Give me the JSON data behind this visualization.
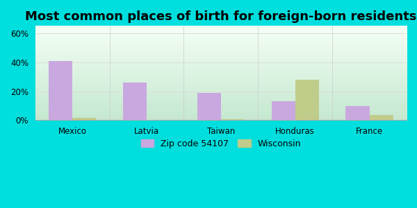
{
  "title": "Most common places of birth for foreign-born residents",
  "categories": [
    "Mexico",
    "Latvia",
    "Taiwan",
    "Honduras",
    "France"
  ],
  "zip_values": [
    41,
    26,
    19,
    13,
    10
  ],
  "wi_values": [
    1.5,
    0.3,
    0.8,
    28,
    3.5
  ],
  "zip_color": "#c9a8e0",
  "wi_color": "#bfcc8a",
  "ylim": [
    0,
    65
  ],
  "yticks": [
    0,
    20,
    40,
    60
  ],
  "ytick_labels": [
    "0%",
    "20%",
    "40%",
    "60%"
  ],
  "outer_bg": "#00dede",
  "bar_width": 0.32,
  "legend_zip": "Zip code 54107",
  "legend_wi": "Wisconsin",
  "title_fontsize": 13,
  "tick_fontsize": 8.5,
  "legend_fontsize": 9,
  "gradient_bottom": "#c5e8c5",
  "gradient_top": "#f0f8f0"
}
